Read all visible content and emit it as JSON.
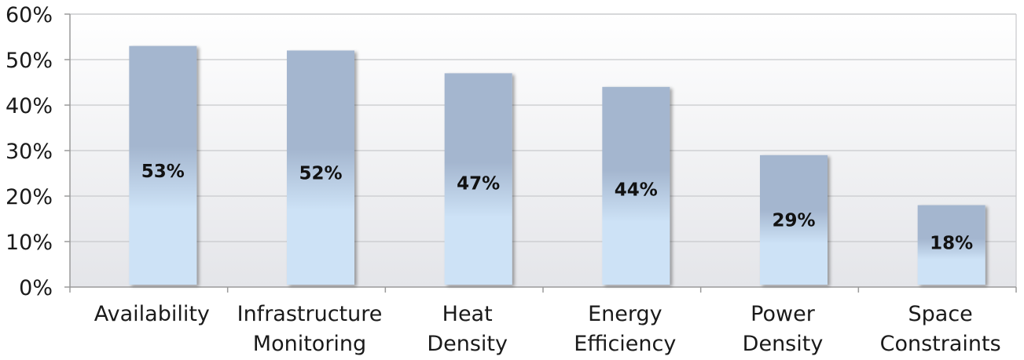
{
  "chart_data": {
    "type": "bar",
    "categories": [
      [
        "Availability"
      ],
      [
        "Infrastructure",
        "Monitoring"
      ],
      [
        "Heat",
        "Density"
      ],
      [
        "Energy",
        "Efficiency"
      ],
      [
        "Power",
        "Density"
      ],
      [
        "Space",
        "Constraints"
      ]
    ],
    "values": [
      53,
      52,
      47,
      44,
      29,
      18
    ],
    "data_labels": [
      "53%",
      "52%",
      "47%",
      "44%",
      "29%",
      "18%"
    ],
    "y_ticks": [
      "0%",
      "10%",
      "20%",
      "30%",
      "40%",
      "50%",
      "60%"
    ],
    "ylim": [
      0,
      60
    ],
    "grid": true,
    "colors": {
      "bar_top": "#a4b6cf",
      "bar_bottom": "#cde2f6",
      "plot_bg_top": "#ffffff",
      "plot_bg_bottom": "#e4e5e9",
      "grid": "#c8c9cc",
      "axis": "#9a9a9a"
    }
  }
}
